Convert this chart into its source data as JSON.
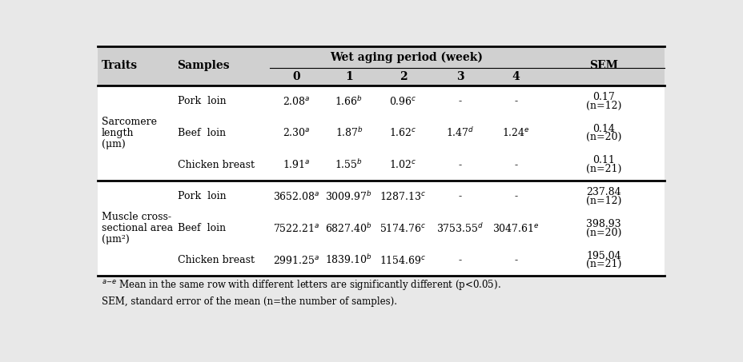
{
  "title": "Wet aging period (week)",
  "section1_trait_lines": [
    "Sarcomere",
    "length",
    "(μm)"
  ],
  "section2_trait_lines": [
    "Muscle cross-",
    "sectional area",
    "(μm²)"
  ],
  "rows": [
    {
      "section": 0,
      "sample": "Pork  loin",
      "w0": "2.08",
      "w0_sup": "a",
      "w1": "1.66",
      "w1_sup": "b",
      "w2": "0.96",
      "w2_sup": "c",
      "w3": "-",
      "w3_sup": "",
      "w4": "-",
      "w4_sup": "",
      "sem1": "0.17",
      "sem2": "(n=12)"
    },
    {
      "section": 0,
      "sample": "Beef  loin",
      "w0": "2.30",
      "w0_sup": "a",
      "w1": "1.87",
      "w1_sup": "b",
      "w2": "1.62",
      "w2_sup": "c",
      "w3": "1.47",
      "w3_sup": "d",
      "w4": "1.24",
      "w4_sup": "e",
      "sem1": "0.14",
      "sem2": "(n=20)"
    },
    {
      "section": 0,
      "sample": "Chicken breast",
      "w0": "1.91",
      "w0_sup": "a",
      "w1": "1.55",
      "w1_sup": "b",
      "w2": "1.02",
      "w2_sup": "c",
      "w3": "-",
      "w3_sup": "",
      "w4": "-",
      "w4_sup": "",
      "sem1": "0.11",
      "sem2": "(n=21)"
    },
    {
      "section": 1,
      "sample": "Pork  loin",
      "w0": "3652.08",
      "w0_sup": "a",
      "w1": "3009.97",
      "w1_sup": "b",
      "w2": "1287.13",
      "w2_sup": "c",
      "w3": "-",
      "w3_sup": "",
      "w4": "-",
      "w4_sup": "",
      "sem1": "237.84",
      "sem2": "(n=12)"
    },
    {
      "section": 1,
      "sample": "Beef  loin",
      "w0": "7522.21",
      "w0_sup": "a",
      "w1": "6827.40",
      "w1_sup": "b",
      "w2": "5174.76",
      "w2_sup": "c",
      "w3": "3753.55",
      "w3_sup": "d",
      "w4": "3047.61",
      "w4_sup": "e",
      "sem1": "398.93",
      "sem2": "(n=20)"
    },
    {
      "section": 1,
      "sample": "Chicken breast",
      "w0": "2991.25",
      "w0_sup": "a",
      "w1": "1839.10",
      "w1_sup": "b",
      "w2": "1154.69",
      "w2_sup": "c",
      "w3": "-",
      "w3_sup": "",
      "w4": "-",
      "w4_sup": "",
      "sem1": "195.04",
      "sem2": "(n=21)"
    }
  ],
  "footnote1_pre": "a-e",
  "footnote1_body": " Mean in the same row with different letters are significantly different (p<0.05).",
  "footnote2": "SEM, standard error of the mean (n=the number of samples).",
  "font_size": 9.0,
  "header_font_size": 10.0,
  "header_bg": "#d0d0d0",
  "body_bg": "#ffffff",
  "outer_bg": "#e8e8e8"
}
